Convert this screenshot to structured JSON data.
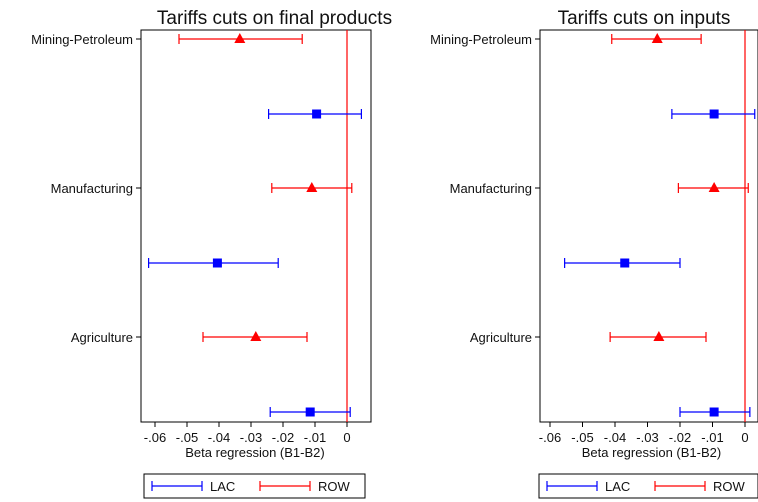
{
  "chart_data": [
    {
      "type": "scatter",
      "title": "Tariffs cuts on final products",
      "xlabel": "Beta regression (B1-B2)",
      "xlim": [
        -0.065,
        0.008
      ],
      "xticks": [
        -0.06,
        -0.05,
        -0.04,
        -0.03,
        -0.02,
        -0.01,
        0
      ],
      "xtick_labels": [
        "-.06",
        "-.05",
        "-.04",
        "-.03",
        "-.02",
        "-.01",
        "0"
      ],
      "reference_line_x": 0,
      "categories": [
        "Mining-Petroleum",
        "Manufacturing",
        "Agriculture"
      ],
      "series": [
        {
          "name": "LAC",
          "color": "#0000ff",
          "marker": "square",
          "points": [
            {
              "category": "Mining-Petroleum",
              "estimate": -0.0095,
              "ci_low": -0.0245,
              "ci_high": 0.0045
            },
            {
              "category": "Manufacturing",
              "estimate": -0.0405,
              "ci_low": -0.062,
              "ci_high": -0.0215
            },
            {
              "category": "Agriculture",
              "estimate": -0.0115,
              "ci_low": -0.024,
              "ci_high": 0.001
            }
          ]
        },
        {
          "name": "ROW",
          "color": "#ff0000",
          "marker": "triangle",
          "points": [
            {
              "category": "Mining-Petroleum",
              "estimate": -0.0335,
              "ci_low": -0.0525,
              "ci_high": -0.014
            },
            {
              "category": "Manufacturing",
              "estimate": -0.011,
              "ci_low": -0.0235,
              "ci_high": 0.0015
            },
            {
              "category": "Agriculture",
              "estimate": -0.0285,
              "ci_low": -0.045,
              "ci_high": -0.0125
            }
          ]
        }
      ],
      "legend": {
        "position": "bottom",
        "items": [
          "LAC",
          "ROW"
        ]
      }
    },
    {
      "type": "scatter",
      "title": "Tariffs cuts on inputs",
      "xlabel": "Beta regression (B1-B2)",
      "xlim": [
        -0.065,
        0.003
      ],
      "xticks": [
        -0.06,
        -0.05,
        -0.04,
        -0.03,
        -0.02,
        -0.01,
        0
      ],
      "xtick_labels": [
        "-.06",
        "-.05",
        "-.04",
        "-.03",
        "-.02",
        "-.01",
        "0"
      ],
      "reference_line_x": 0,
      "categories": [
        "Mining-Petroleum",
        "Manufacturing",
        "Agriculture"
      ],
      "series": [
        {
          "name": "LAC",
          "color": "#0000ff",
          "marker": "square",
          "points": [
            {
              "category": "Mining-Petroleum",
              "estimate": -0.0095,
              "ci_low": -0.0225,
              "ci_high": 0.003
            },
            {
              "category": "Manufacturing",
              "estimate": -0.037,
              "ci_low": -0.0555,
              "ci_high": -0.02
            },
            {
              "category": "Agriculture",
              "estimate": -0.0095,
              "ci_low": -0.02,
              "ci_high": 0.0015
            }
          ]
        },
        {
          "name": "ROW",
          "color": "#ff0000",
          "marker": "triangle",
          "points": [
            {
              "category": "Mining-Petroleum",
              "estimate": -0.027,
              "ci_low": -0.041,
              "ci_high": -0.0135
            },
            {
              "category": "Manufacturing",
              "estimate": -0.0095,
              "ci_low": -0.0205,
              "ci_high": 0.001
            },
            {
              "category": "Agriculture",
              "estimate": -0.0265,
              "ci_low": -0.0415,
              "ci_high": -0.012
            }
          ]
        }
      ],
      "legend": {
        "position": "bottom",
        "items": [
          "LAC",
          "ROW"
        ]
      }
    }
  ]
}
